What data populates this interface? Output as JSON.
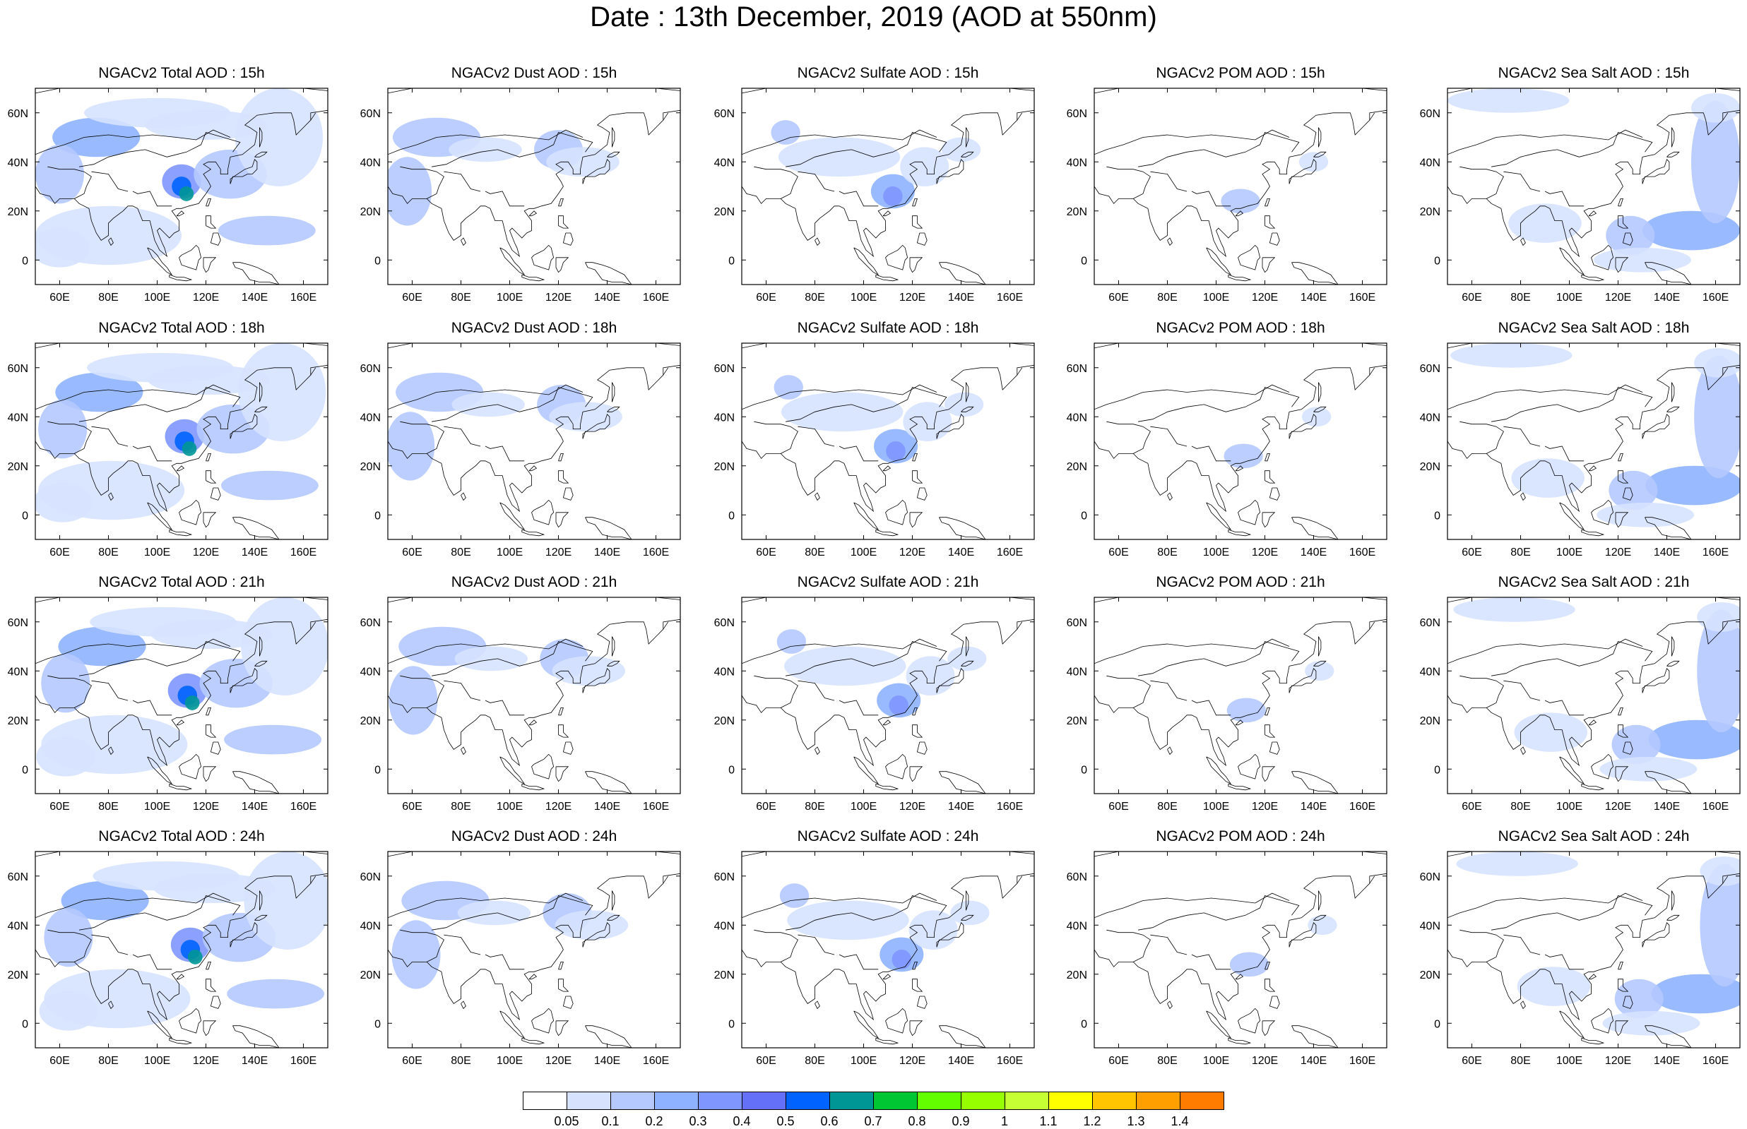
{
  "title": "Date : 13th December, 2019 (AOD at 550nm)",
  "panels": {
    "rows": [
      "15h",
      "18h",
      "21h",
      "24h"
    ],
    "titles": [
      [
        "NGACv2 Total AOD : 15h",
        "NGACv2 Dust AOD : 15h",
        "NGACv2 Sulfate AOD : 15h",
        "NGACv2 POM AOD : 15h",
        "NGACv2 Sea Salt AOD : 15h"
      ],
      [
        "NGACv2 Total AOD : 18h",
        "NGACv2 Dust AOD : 18h",
        "NGACv2 Sulfate AOD : 18h",
        "NGACv2 POM AOD : 18h",
        "NGACv2 Sea Salt AOD : 18h"
      ],
      [
        "NGACv2 Total AOD : 21h",
        "NGACv2 Dust AOD : 21h",
        "NGACv2 Sulfate AOD : 21h",
        "NGACv2 POM AOD : 21h",
        "NGACv2 Sea Salt AOD : 21h"
      ],
      [
        "NGACv2 Total AOD : 24h",
        "NGACv2 Dust AOD : 24h",
        "NGACv2 Sulfate AOD : 24h",
        "NGACv2 POM AOD : 24h",
        "NGACv2 Sea Salt  AOD : 24h"
      ]
    ]
  },
  "map": {
    "lon_range": [
      50,
      170
    ],
    "lat_range": [
      -10,
      70
    ],
    "lon_ticks": [
      "60E",
      "80E",
      "100E",
      "120E",
      "140E",
      "160E"
    ],
    "lon_tick_values": [
      60,
      80,
      100,
      120,
      140,
      160
    ],
    "lat_ticks": [
      "0",
      "20N",
      "40N",
      "60N"
    ],
    "lat_tick_values": [
      0,
      20,
      40,
      60
    ]
  },
  "colorbar": {
    "labels": [
      "0.05",
      "0.1",
      "0.2",
      "0.3",
      "0.4",
      "0.5",
      "0.6",
      "0.7",
      "0.8",
      "0.9",
      "1",
      "1.1",
      "1.2",
      "1.3",
      "1.4"
    ],
    "colors": [
      "#ffffff",
      "#d6e2ff",
      "#b5c9ff",
      "#8eb2ff",
      "#7f96ff",
      "#6370f7",
      "#0063ff",
      "#009696",
      "#00c633",
      "#63ff00",
      "#96ff00",
      "#c6ff33",
      "#ffff00",
      "#ffc600",
      "#ffa000",
      "#ff7c00",
      "#ff1900"
    ]
  }
}
